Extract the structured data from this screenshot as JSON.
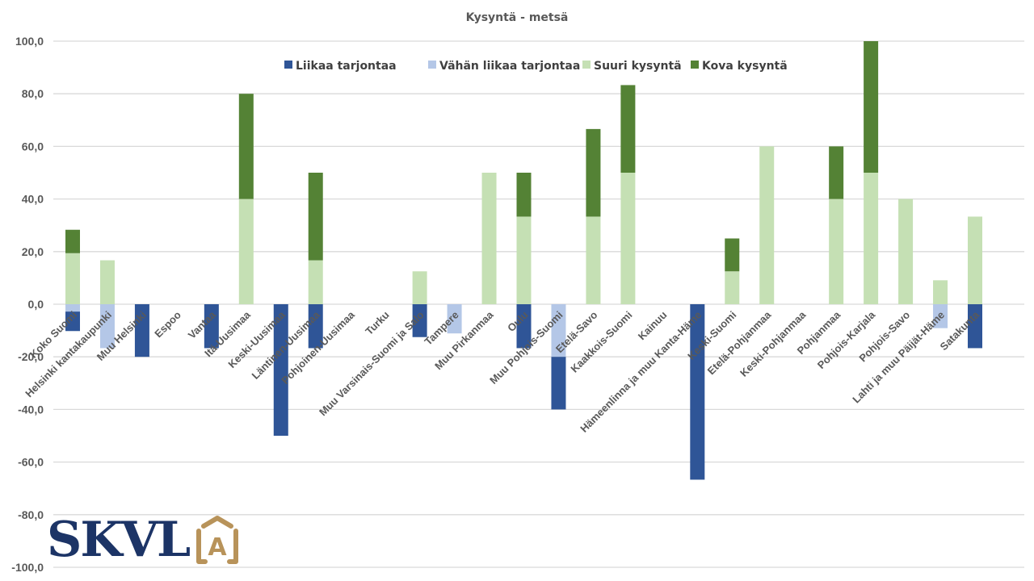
{
  "chart_data": {
    "type": "bar",
    "stacked": true,
    "title": "Kysyntä - metsä",
    "xlabel": "",
    "ylabel": "",
    "ylim": [
      -100,
      100
    ],
    "yticks": [
      100,
      80,
      60,
      40,
      20,
      0,
      -20,
      -40,
      -60,
      -80,
      -100
    ],
    "ytick_labels": [
      "100,0",
      "80,0",
      "60,0",
      "40,0",
      "20,0",
      "0,0",
      "-20,0",
      "-40,0",
      "-60,0",
      "-80,0",
      "-100,0"
    ],
    "grid": true,
    "legend_position": "top-center",
    "categories": [
      "Koko Suomi",
      "Helsinki kantakaupunki",
      "Muu Helsinki",
      "Espoo",
      "Vantaa",
      "Itä-Uusimaa",
      "Keski-Uusimaa",
      "Läntinen-Uusimaa",
      "Pohjoinen-Uusimaa",
      "Turku",
      "Muu Varsinais-Suomi ja Salo",
      "Tampere",
      "Muu Pirkanmaa",
      "Oulu",
      "Muu Pohjois-Suomi",
      "Etelä-Savo",
      "Kaakkois-Suomi",
      "Kainuu",
      "Hämeenlinna ja muu Kanta-Häme",
      "Keski-Suomi",
      "Etelä-Pohjanmaa",
      "Keski-Pohjanmaa",
      "Pohjanmaa",
      "Pohjois-Karjala",
      "Pohjois-Savo",
      "Lahti ja muu Päijät-Häme",
      "Satakunta"
    ],
    "series": [
      {
        "name": "Liikaa tarjontaa",
        "color": "#2f5597",
        "values": [
          -7.4,
          0,
          -20,
          0,
          -16.7,
          0,
          -50,
          -16.7,
          0,
          0,
          -12.5,
          0,
          0,
          -16.7,
          -20,
          0,
          0,
          0,
          -66.7,
          0,
          0,
          0,
          0,
          0,
          0,
          0,
          -16.7
        ]
      },
      {
        "name": "Vähän liikaa tarjontaa",
        "color": "#b4c7e7",
        "values": [
          -2.8,
          -16.7,
          0,
          0,
          0,
          0,
          0,
          0,
          0,
          0,
          0,
          -11.1,
          0,
          0,
          -20,
          0,
          0,
          0,
          0,
          0,
          0,
          0,
          0,
          0,
          0,
          -9.1,
          0
        ]
      },
      {
        "name": "Suuri kysyntä",
        "color": "#c5e0b4",
        "values": [
          19.4,
          16.7,
          0,
          0,
          0,
          40,
          0,
          16.7,
          0,
          0,
          12.5,
          0,
          50,
          33.3,
          0,
          33.3,
          50,
          0,
          0,
          12.5,
          60,
          0,
          40,
          50,
          40,
          9.1,
          33.3
        ]
      },
      {
        "name": "Kova kysyntä",
        "color": "#548235",
        "values": [
          8.9,
          0,
          0,
          0,
          0,
          40,
          0,
          33.3,
          0,
          0,
          0,
          0,
          0,
          16.7,
          0,
          33.3,
          33.3,
          0,
          0,
          12.5,
          0,
          0,
          20,
          50,
          0,
          0,
          0
        ]
      }
    ],
    "negative_stack_order": [
      "Vähän liikaa tarjontaa",
      "Liikaa tarjontaa"
    ],
    "positive_stack_order": [
      "Suuri kysyntä",
      "Kova kysyntä"
    ]
  },
  "logo": {
    "text": "SKVL",
    "mark_letter": "A",
    "text_color": "#1c3466",
    "mark_color": "#b8935a"
  }
}
